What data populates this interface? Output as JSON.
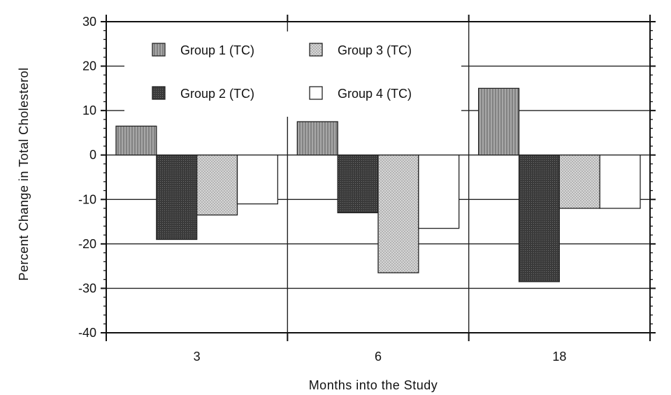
{
  "chart_data": {
    "type": "bar",
    "title": "",
    "xlabel": "Months into the Study",
    "ylabel": "Percent Change in Total Cholesterol",
    "categories": [
      "3",
      "6",
      "18"
    ],
    "ylim": [
      -40,
      30
    ],
    "yticks": [
      "30",
      "20",
      "10",
      "0",
      "-10",
      "-20",
      "-30",
      "-40"
    ],
    "grid": true,
    "legend_position": "top-left",
    "series": [
      {
        "name": "Group 1 (TC)",
        "values": [
          6.5,
          7.5,
          15
        ],
        "fill": "#8c8c8c",
        "pattern": "vertical-hatch"
      },
      {
        "name": "Group 2 (TC)",
        "values": [
          -19,
          -13,
          -28.5
        ],
        "fill": "#3a3a3a",
        "pattern": "dense-dots"
      },
      {
        "name": "Group 3 (TC)",
        "values": [
          -13.5,
          -26.5,
          -12
        ],
        "fill": "#c8c8c8",
        "pattern": "stipple"
      },
      {
        "name": "Group 4 (TC)",
        "values": [
          -11,
          -16.5,
          -12
        ],
        "fill": "#ffffff",
        "pattern": "none"
      }
    ]
  }
}
